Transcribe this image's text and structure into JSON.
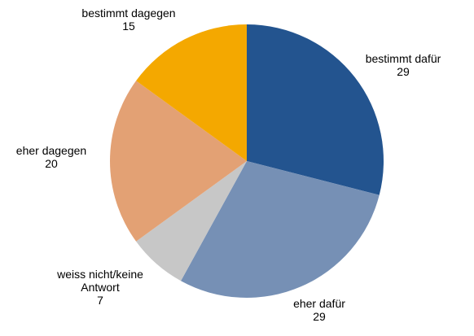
{
  "chart_data": {
    "type": "pie",
    "title": "",
    "start_angle_deg": 0,
    "direction": "clockwise",
    "slices": [
      {
        "label_lines": [
          "bestimmt dafür"
        ],
        "value": 29,
        "value_text": "29",
        "color": "#23548f"
      },
      {
        "label_lines": [
          "eher dafür"
        ],
        "value": 29,
        "value_text": "29",
        "color": "#7690b5"
      },
      {
        "label_lines": [
          "weiss nicht/keine",
          "Antwort"
        ],
        "value": 7,
        "value_text": "7",
        "color": "#c7c7c7"
      },
      {
        "label_lines": [
          "eher dagegen"
        ],
        "value": 20,
        "value_text": "20",
        "color": "#e3a174"
      },
      {
        "label_lines": [
          "bestimmt dagegen"
        ],
        "value": 15,
        "value_text": "15",
        "color": "#f4a800"
      }
    ]
  }
}
